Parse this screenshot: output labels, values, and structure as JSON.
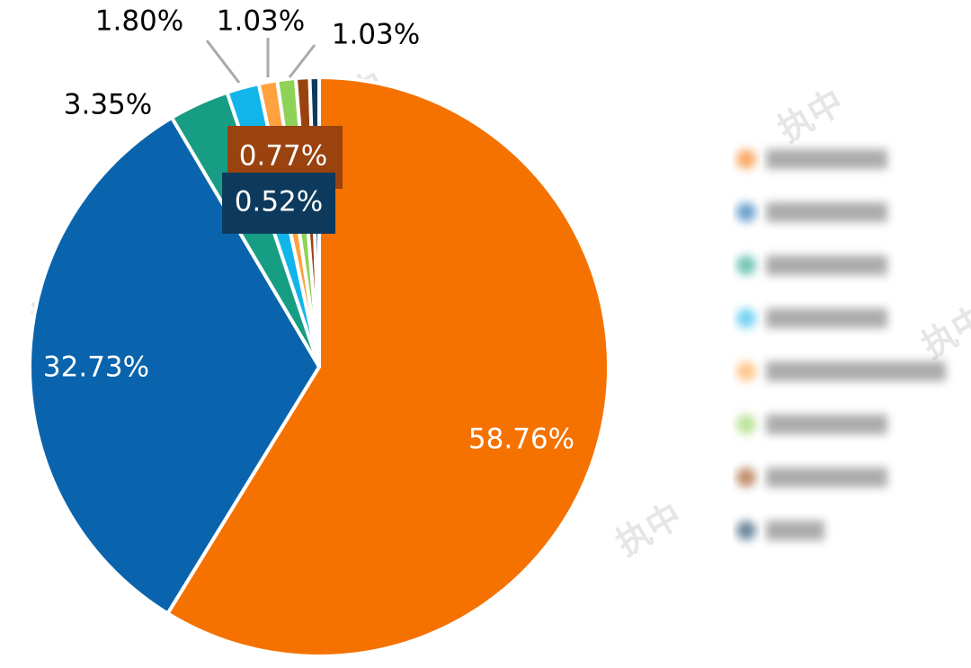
{
  "chart_data": {
    "type": "pie",
    "watermark": "执中",
    "values": [
      58.76,
      32.73,
      3.35,
      1.8,
      1.03,
      1.03,
      0.77,
      0.52
    ],
    "value_labels": [
      "58.76%",
      "32.73%",
      "3.35%",
      "1.80%",
      "1.03%",
      "1.03%",
      "0.77%",
      "0.52%"
    ],
    "colors": [
      "#f57200",
      "#0a64ad",
      "#179d84",
      "#12b5ea",
      "#ffa13f",
      "#8ed257",
      "#9a430f",
      "#0d3a5c"
    ]
  }
}
